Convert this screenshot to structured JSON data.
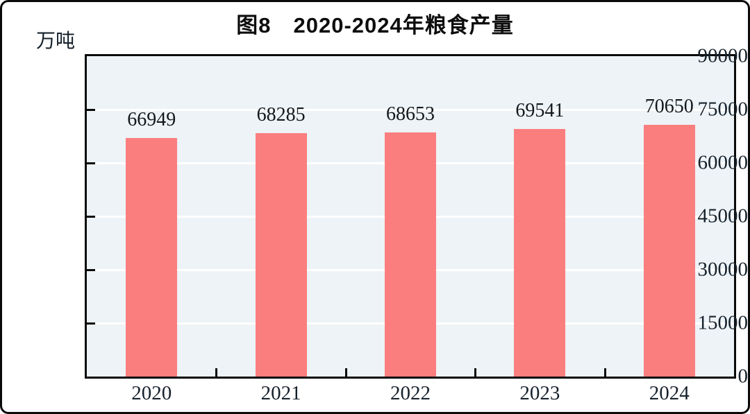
{
  "chart_data": {
    "type": "bar",
    "title": "图8　2020-2024年粮食产量",
    "unit_label": "万吨",
    "categories": [
      "2020",
      "2021",
      "2022",
      "2023",
      "2024"
    ],
    "series": [
      {
        "name": "粮食产量",
        "values": [
          66949,
          68285,
          68653,
          69541,
          70650
        ]
      }
    ],
    "value_labels": [
      "66949",
      "68285",
      "68653",
      "69541",
      "70650"
    ],
    "ylim": [
      0,
      90000
    ],
    "yticks": [
      0,
      15000,
      30000,
      45000,
      60000,
      75000,
      90000
    ],
    "ytick_labels": [
      "0",
      "15000",
      "30000",
      "45000",
      "60000",
      "75000",
      "90000"
    ],
    "xlabel": "",
    "ylabel": "万吨",
    "grid": "horizontal",
    "legend": "none",
    "colors": {
      "bar": "#fb7e7e",
      "plot_background": "#edf3f6",
      "gridline": "#ffffff",
      "axis": "#0a0a0a",
      "text": "#16212b",
      "page_background": "#ffffff"
    }
  }
}
